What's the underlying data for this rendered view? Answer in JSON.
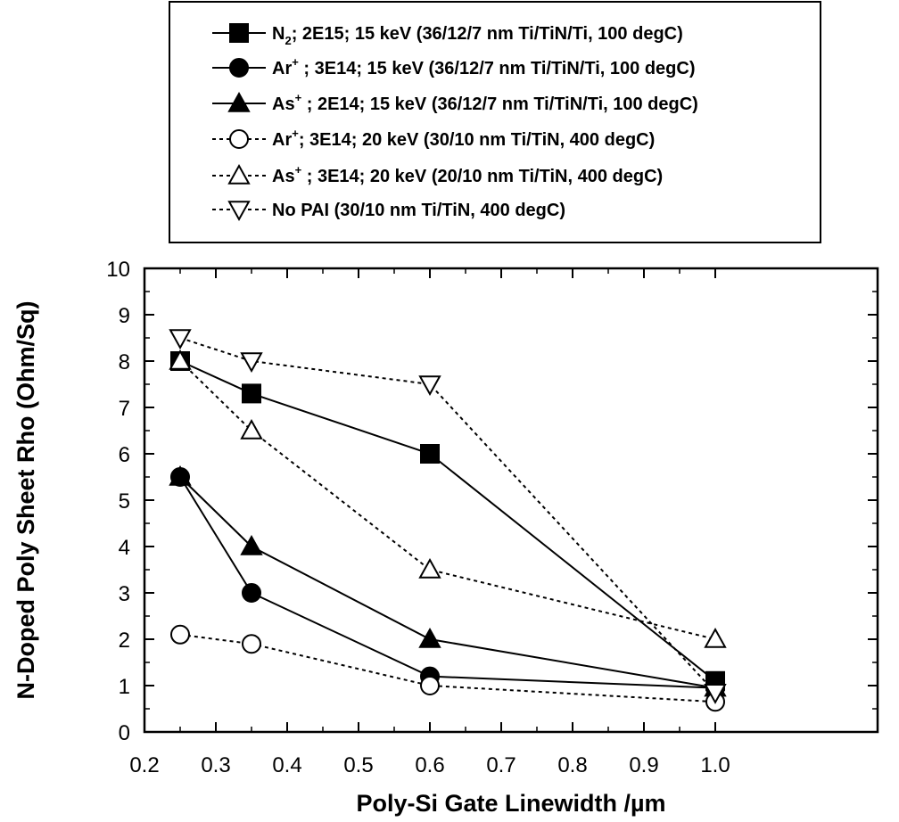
{
  "chart_data": {
    "type": "line",
    "xlabel": "Poly-Si Gate Linewidth /µm",
    "ylabel": "N-Doped Poly Sheet Rho (Ohm/Sq)",
    "xlim": [
      0.2,
      1.05
    ],
    "ylim": [
      0,
      10
    ],
    "x_ticks": [
      "0.2",
      "0.3",
      "0.4",
      "0.5",
      "0.6",
      "0.7",
      "0.8",
      "0.9",
      "1.0"
    ],
    "y_ticks": [
      "0",
      "1",
      "2",
      "3",
      "4",
      "5",
      "6",
      "7",
      "8",
      "9",
      "10"
    ],
    "grid": false,
    "legend_position": "top",
    "series": [
      {
        "ion": "N",
        "sub": "2",
        "sup": "",
        "rest": "2E15; 15 keV (36/12/7 nm Ti/TiN/Ti, 100 degC)",
        "sep": "; ",
        "marker": "square",
        "filled": true,
        "line": "solid",
        "x": [
          0.25,
          0.35,
          0.6,
          1.0
        ],
        "y": [
          8.0,
          7.3,
          6.0,
          1.1
        ]
      },
      {
        "ion": "Ar",
        "sub": "",
        "sup": "+",
        "rest": "3E14; 15 keV (36/12/7 nm Ti/TiN/Ti, 100 degC)",
        "sep": " ; ",
        "marker": "circle",
        "filled": true,
        "line": "solid",
        "x": [
          0.25,
          0.35,
          0.6,
          1.0
        ],
        "y": [
          5.5,
          3.0,
          1.2,
          0.95
        ]
      },
      {
        "ion": "As",
        "sub": "",
        "sup": "+",
        "rest": "2E14; 15 keV (36/12/7 nm Ti/TiN/Ti, 100 degC)",
        "sep": " ; ",
        "marker": "triangle-up",
        "filled": true,
        "line": "solid",
        "x": [
          0.25,
          0.35,
          0.6,
          1.0
        ],
        "y": [
          5.5,
          4.0,
          2.0,
          0.95
        ]
      },
      {
        "ion": "Ar",
        "sub": "",
        "sup": "+",
        "rest": "3E14; 20 keV (30/10 nm Ti/TiN, 400 degC)",
        "sep": "; ",
        "marker": "circle",
        "filled": false,
        "line": "dotted",
        "x": [
          0.25,
          0.35,
          0.6,
          1.0
        ],
        "y": [
          2.1,
          1.9,
          1.0,
          0.65
        ]
      },
      {
        "ion": "As",
        "sub": "",
        "sup": "+",
        "rest": "3E14; 20 keV (20/10 nm Ti/TiN, 400 degC)",
        "sep": " ; ",
        "marker": "triangle-up",
        "filled": false,
        "line": "dotted",
        "x": [
          0.25,
          0.35,
          0.6,
          1.0
        ],
        "y": [
          8.0,
          6.5,
          3.5,
          2.0
        ]
      },
      {
        "ion": "No PAI (30/10 nm Ti/TiN, 400 degC)",
        "sub": "",
        "sup": "",
        "rest": "",
        "sep": "",
        "marker": "triangle-down",
        "filled": false,
        "line": "dotted",
        "x": [
          0.25,
          0.35,
          0.6,
          1.0
        ],
        "y": [
          8.5,
          8.0,
          7.5,
          0.85
        ]
      }
    ]
  }
}
